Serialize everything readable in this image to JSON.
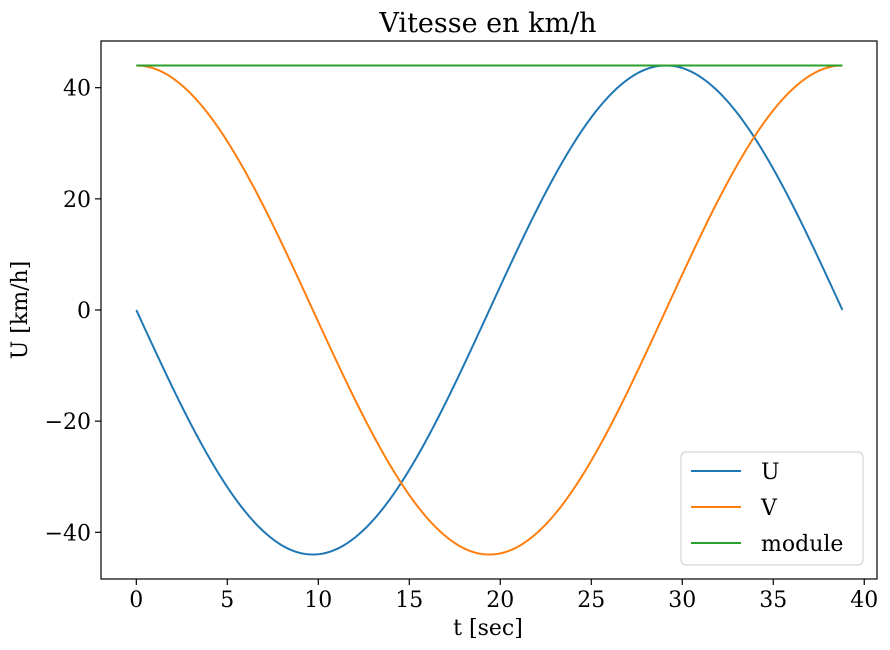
{
  "chart_data": {
    "type": "line",
    "title": "Vitesse  en km/h",
    "xlabel": "t [sec]",
    "ylabel": "U [km/h]",
    "xlim": [
      -1.94,
      40.7
    ],
    "ylim": [
      -48.4,
      48.4
    ],
    "grid": false,
    "legend_position": "lower-right",
    "xticks": [
      0,
      5,
      10,
      15,
      20,
      25,
      30,
      35,
      40
    ],
    "yticks": [
      -40,
      -20,
      0,
      20,
      40
    ],
    "xtick_labels": [
      "0",
      "5",
      "10",
      "15",
      "20",
      "25",
      "30",
      "35",
      "40"
    ],
    "ytick_labels": [
      "−40",
      "−20",
      "0",
      "20",
      "40"
    ],
    "t_max": 38.8,
    "amplitude": 44,
    "samples": 200,
    "series": [
      {
        "name": "U",
        "color": "#1f77b4",
        "formula": "-A*sin(2*pi*t/T)",
        "note": "U(0)=0, min -44 at t~9.7, max 44 at t~29.1"
      },
      {
        "name": "V",
        "color": "#ff7f0e",
        "formula": "A*cos(2*pi*t/T)",
        "note": "V(0)=44, min -44 at t~19.4, V(38.8)=44"
      },
      {
        "name": "module",
        "color": "#2ca02c",
        "formula": "A",
        "note": "constant 44"
      }
    ]
  }
}
